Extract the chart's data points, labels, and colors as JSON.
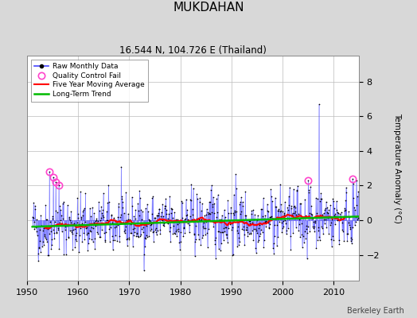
{
  "title": "MUKDAHAN",
  "subtitle": "16.544 N, 104.726 E (Thailand)",
  "ylabel": "Temperature Anomaly (°C)",
  "credit": "Berkeley Earth",
  "xlim": [
    1950,
    2015
  ],
  "ylim": [
    -3.5,
    9.5
  ],
  "yticks": [
    -2,
    0,
    2,
    4,
    6,
    8
  ],
  "xticks": [
    1950,
    1960,
    1970,
    1980,
    1990,
    2000,
    2010
  ],
  "bg_color": "#d8d8d8",
  "plot_bg_color": "#ffffff",
  "line_color": "#4444ff",
  "dot_color": "#000000",
  "ma_color": "#ff0000",
  "trend_color": "#00bb00",
  "qc_color": "#ff44cc",
  "start_year": 1951,
  "end_year": 2014,
  "seed": 42,
  "title_fontsize": 11,
  "subtitle_fontsize": 8.5,
  "ylabel_fontsize": 7.5,
  "tick_fontsize": 8,
  "legend_fontsize": 6.5,
  "credit_fontsize": 7
}
